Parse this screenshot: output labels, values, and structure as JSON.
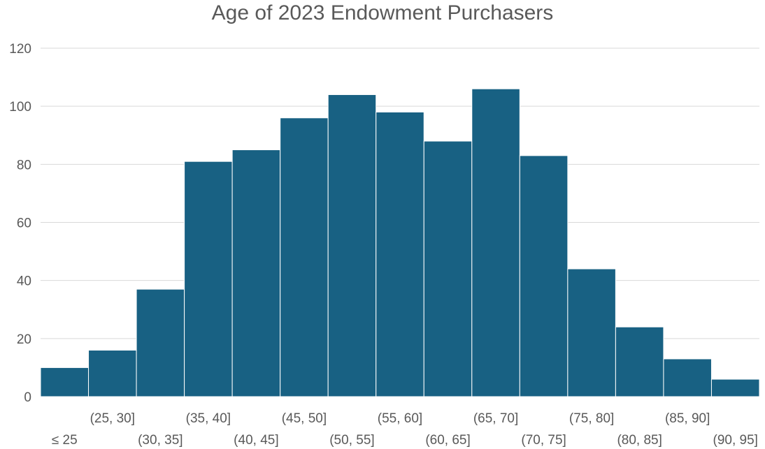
{
  "chart_data": {
    "type": "bar",
    "title": "Age of 2023 Endowment Purchasers",
    "xlabel": "",
    "ylabel": "",
    "categories": [
      "≤ 25",
      "(25, 30]",
      "(30, 35]",
      "(35, 40]",
      "(40, 45]",
      "(45, 50]",
      "(50, 55]",
      "(55, 60]",
      "(60, 65]",
      "(65, 70]",
      "(70, 75]",
      "(75, 80]",
      "(80, 85]",
      "(85, 90]",
      "(90, 95]"
    ],
    "values": [
      10,
      16,
      37,
      81,
      85,
      96,
      104,
      98,
      88,
      106,
      83,
      44,
      24,
      13,
      6
    ],
    "ylim": [
      0,
      120
    ],
    "yticks": [
      0,
      20,
      40,
      60,
      80,
      100,
      120
    ],
    "grid": true,
    "legend": "none",
    "bar_color": "#186183"
  }
}
